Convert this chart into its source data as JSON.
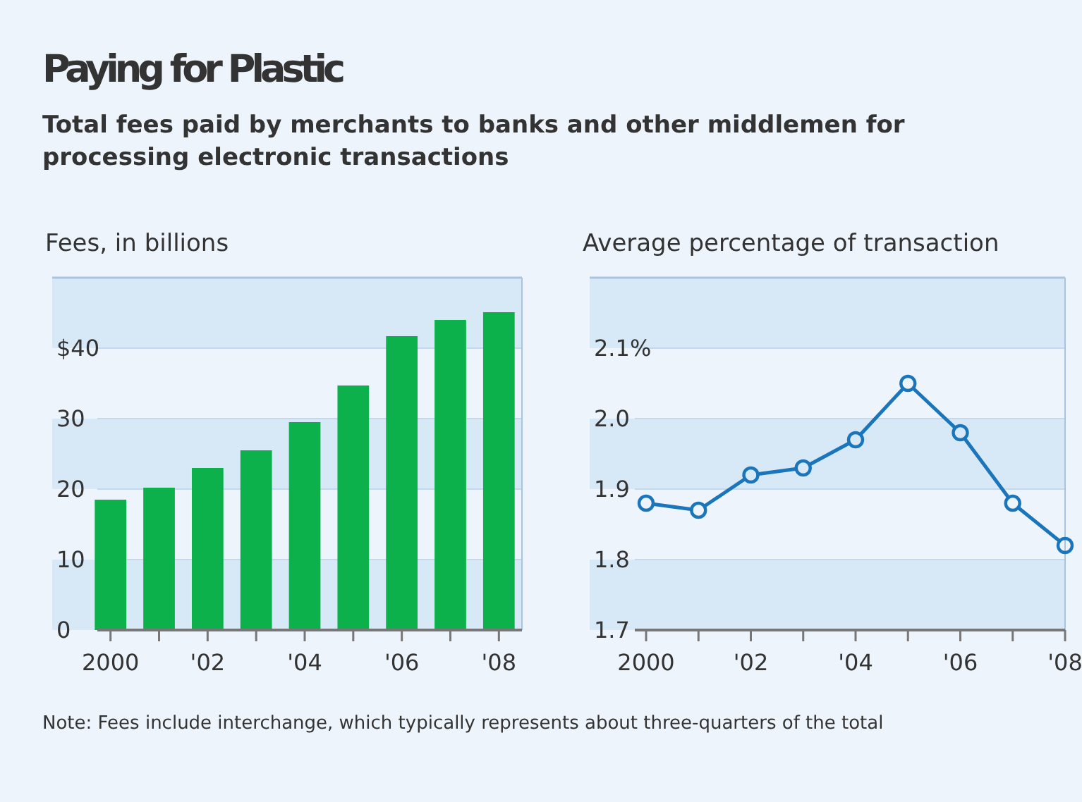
{
  "chart_data": [
    {
      "type": "bar",
      "title": "Paying for Plastic",
      "subtitle": "Total fees paid by merchants to banks and other middlemen for processing electronic transactions",
      "ylabel": "Fees, in billions",
      "categories": [
        "2000",
        null,
        "'02",
        null,
        "'04",
        null,
        "'06",
        null,
        "'08"
      ],
      "values": [
        18.5,
        20.2,
        23,
        25.5,
        29.5,
        34.7,
        41.7,
        44,
        45.1
      ],
      "color": "#0db14b",
      "ylim": [
        0,
        50
      ],
      "yticks": [
        0,
        10,
        20,
        30,
        {
          "value": 40,
          "label": "$40"
        }
      ],
      "grid": "y",
      "annotations": [
        "Note: Fees include interchange, which typically represents about three-quarters of the total"
      ]
    },
    {
      "type": "line",
      "ylabel": "Average percentage of transaction",
      "categories": [
        "2000",
        null,
        "'02",
        null,
        "'04",
        null,
        "'06",
        null,
        "'08"
      ],
      "values": [
        1.88,
        1.87,
        1.92,
        1.93,
        1.97,
        2.05,
        1.98,
        1.88,
        1.82
      ],
      "color": "#1a75bb",
      "ylim": [
        1.7,
        2.2
      ],
      "yticks": [
        1.7,
        1.8,
        1.9,
        {
          "value": 2.0,
          "label": "2.0"
        },
        {
          "value": 2.1,
          "label": "2.1%"
        }
      ],
      "grid": "y",
      "marker": "circle"
    }
  ]
}
